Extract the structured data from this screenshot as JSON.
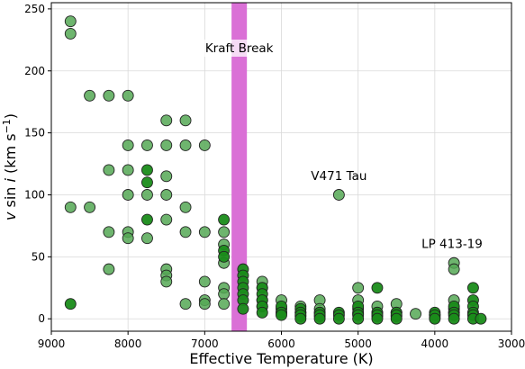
{
  "chart_data": {
    "type": "scatter",
    "title": "",
    "xlabel": "Effective Temperature (K)",
    "ylabel_parts": {
      "v": "v",
      "sin": " sin ",
      "i": "i",
      "unit": " (km s",
      "exp": "−1",
      "close": ")"
    },
    "xlim": [
      9000,
      3000
    ],
    "ylim": [
      -10,
      255
    ],
    "xticks": [
      9000,
      8000,
      7000,
      6000,
      5000,
      4000,
      3000
    ],
    "yticks": [
      0,
      50,
      100,
      150,
      200,
      250
    ],
    "grid": true,
    "colors": {
      "light_marker": "#55a855",
      "dark_marker": "#1a8c1a",
      "marker_edge": "#222222",
      "kraft_band": "#da70d6"
    },
    "kraft_break": {
      "label": "Kraft Break",
      "x_range": [
        6650,
        6450
      ]
    },
    "annotations": [
      {
        "label": "V471 Tau",
        "x": 5250,
        "y": 112
      },
      {
        "label": "LP 413-19",
        "x": 3775,
        "y": 57
      }
    ],
    "series": [
      {
        "style": "light",
        "points": [
          [
            8750,
            240
          ],
          [
            8750,
            230
          ],
          [
            8750,
            90
          ],
          [
            8500,
            180
          ],
          [
            8500,
            90
          ],
          [
            8250,
            180
          ],
          [
            8250,
            120
          ],
          [
            8250,
            70
          ],
          [
            8250,
            40
          ],
          [
            8000,
            180
          ],
          [
            8000,
            140
          ],
          [
            8000,
            120
          ],
          [
            8000,
            100
          ],
          [
            8000,
            70
          ],
          [
            8000,
            65
          ],
          [
            7750,
            140
          ],
          [
            7750,
            100
          ],
          [
            7750,
            65
          ],
          [
            7500,
            160
          ],
          [
            7500,
            140
          ],
          [
            7500,
            115
          ],
          [
            7500,
            100
          ],
          [
            7500,
            80
          ],
          [
            7500,
            40
          ],
          [
            7500,
            35
          ],
          [
            7500,
            30
          ],
          [
            7250,
            160
          ],
          [
            7250,
            140
          ],
          [
            7250,
            90
          ],
          [
            7250,
            70
          ],
          [
            7250,
            12
          ],
          [
            7000,
            140
          ],
          [
            7000,
            70
          ],
          [
            7000,
            30
          ],
          [
            7000,
            15
          ],
          [
            7000,
            12
          ],
          [
            6750,
            70
          ],
          [
            6750,
            60
          ],
          [
            6750,
            45
          ],
          [
            6750,
            25
          ],
          [
            6750,
            20
          ],
          [
            6750,
            12
          ],
          [
            6250,
            30
          ],
          [
            6250,
            25
          ],
          [
            6250,
            15
          ],
          [
            6250,
            10
          ],
          [
            6000,
            15
          ],
          [
            6000,
            8
          ],
          [
            6000,
            5
          ],
          [
            5750,
            10
          ],
          [
            5750,
            5
          ],
          [
            5750,
            2
          ],
          [
            5500,
            15
          ],
          [
            5500,
            8
          ],
          [
            5500,
            5
          ],
          [
            5500,
            2
          ],
          [
            5000,
            25
          ],
          [
            5000,
            15
          ],
          [
            5000,
            8
          ],
          [
            5000,
            4
          ],
          [
            4750,
            10
          ],
          [
            4750,
            5
          ],
          [
            4750,
            2
          ],
          [
            4500,
            12
          ],
          [
            4500,
            5
          ],
          [
            4500,
            2
          ],
          [
            4250,
            4
          ],
          [
            4000,
            3
          ],
          [
            4000,
            1
          ],
          [
            3750,
            45
          ],
          [
            3750,
            40
          ],
          [
            3750,
            15
          ],
          [
            3750,
            8
          ],
          [
            3750,
            5
          ]
        ]
      },
      {
        "style": "dark",
        "points": [
          [
            8750,
            12
          ],
          [
            7750,
            120
          ],
          [
            7750,
            110
          ],
          [
            7750,
            80
          ],
          [
            6750,
            80
          ],
          [
            6750,
            55
          ],
          [
            6750,
            50
          ],
          [
            6500,
            40
          ],
          [
            6500,
            35
          ],
          [
            6500,
            30
          ],
          [
            6500,
            25
          ],
          [
            6500,
            20
          ],
          [
            6500,
            15
          ],
          [
            6500,
            8
          ],
          [
            6250,
            25
          ],
          [
            6250,
            20
          ],
          [
            6250,
            15
          ],
          [
            6250,
            10
          ],
          [
            6250,
            5
          ],
          [
            6000,
            10
          ],
          [
            6000,
            5
          ],
          [
            6000,
            3
          ],
          [
            5750,
            8
          ],
          [
            5750,
            5
          ],
          [
            5750,
            3
          ],
          [
            5750,
            0
          ],
          [
            5500,
            5
          ],
          [
            5500,
            3
          ],
          [
            5500,
            0
          ],
          [
            5250,
            5
          ],
          [
            5250,
            3
          ],
          [
            5250,
            0
          ],
          [
            5000,
            10
          ],
          [
            5000,
            5
          ],
          [
            5000,
            3
          ],
          [
            5000,
            0
          ],
          [
            4750,
            25
          ],
          [
            4750,
            5
          ],
          [
            4750,
            3
          ],
          [
            4750,
            0
          ],
          [
            4500,
            5
          ],
          [
            4500,
            3
          ],
          [
            4500,
            0
          ],
          [
            4000,
            5
          ],
          [
            4000,
            3
          ],
          [
            4000,
            0
          ],
          [
            3750,
            10
          ],
          [
            3750,
            5
          ],
          [
            3750,
            3
          ],
          [
            3750,
            0
          ],
          [
            3500,
            25
          ],
          [
            3500,
            15
          ],
          [
            3500,
            10
          ],
          [
            3500,
            5
          ],
          [
            3500,
            3
          ],
          [
            3500,
            0
          ],
          [
            3400,
            0
          ]
        ]
      },
      {
        "style": "light",
        "name_hidden": true,
        "points": [
          [
            5250,
            100
          ]
        ]
      }
    ]
  }
}
